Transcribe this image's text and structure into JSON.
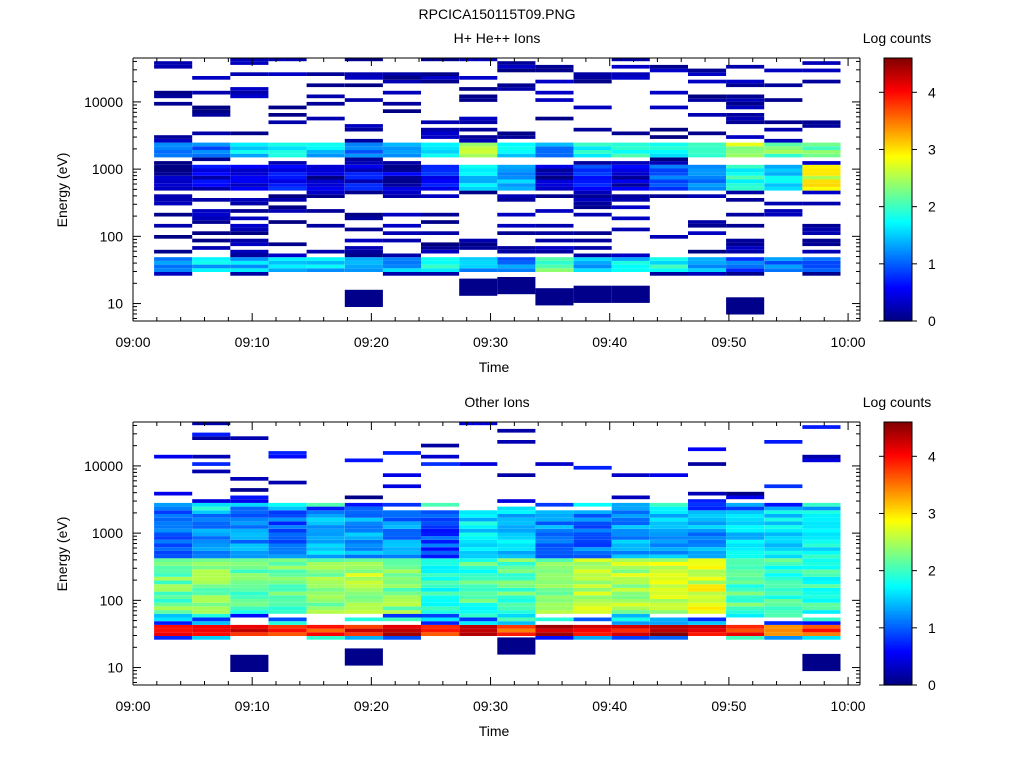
{
  "figure_title": "RPCICA150115T09.PNG",
  "chart_data": [
    {
      "type": "heatmap",
      "title": "H+ He++ Ions",
      "xlabel": "Time",
      "ylabel": "Energy (eV)",
      "x_ticks": [
        "09:00",
        "09:10",
        "09:20",
        "09:30",
        "09:40",
        "09:50",
        "10:00"
      ],
      "y_ticks": [
        "10",
        "100",
        "1000",
        "10000"
      ],
      "y_scale": "log",
      "colorbar": {
        "label": "Log counts",
        "ticks": [
          "0",
          "1",
          "2",
          "3",
          "4"
        ],
        "range": [
          0,
          4.6
        ]
      },
      "time_columns_min": [
        3.2,
        6.4,
        9.6,
        12.8,
        16.0,
        19.2,
        22.4,
        25.6,
        28.8,
        32.0,
        35.2,
        38.4,
        41.6,
        44.8,
        48.0,
        51.2,
        54.4,
        57.6
      ],
      "low_energy_band": {
        "energy_range_eV": [
          28,
          46
        ],
        "values": [
          1.2,
          1.5,
          1.4,
          1.6,
          1.5,
          1.3,
          1.4,
          1.8,
          1.3,
          1.1,
          2.2,
          1.4,
          1.6,
          1.8,
          1.3,
          1.0,
          1.2,
          1.0
        ]
      },
      "mid_energy_band": {
        "energy_range_eV": [
          1500,
          2600
        ],
        "values": [
          1.3,
          1.1,
          1.5,
          1.6,
          1.5,
          1.0,
          1.2,
          1.6,
          2.7,
          1.6,
          1.2,
          1.8,
          1.9,
          1.7,
          1.8,
          2.5,
          2.2,
          2.3
        ]
      },
      "broad_band": {
        "energy_range_eV": [
          500,
          1200
        ],
        "values": [
          0.2,
          0.4,
          0.6,
          0.6,
          0.3,
          0.5,
          0.3,
          0.6,
          1.5,
          1.3,
          0.3,
          0.7,
          0.4,
          1.0,
          1.3,
          1.8,
          1.6,
          2.8
        ]
      }
    },
    {
      "type": "heatmap",
      "title": "Other Ions",
      "xlabel": "Time",
      "ylabel": "Energy (eV)",
      "x_ticks": [
        "09:00",
        "09:10",
        "09:20",
        "09:30",
        "09:40",
        "09:50",
        "10:00"
      ],
      "y_ticks": [
        "10",
        "100",
        "1000",
        "10000"
      ],
      "y_scale": "log",
      "colorbar": {
        "label": "Log counts",
        "ticks": [
          "0",
          "1",
          "2",
          "3",
          "4"
        ],
        "range": [
          0,
          4.6
        ]
      },
      "time_columns_min": [
        3.2,
        6.4,
        9.6,
        12.8,
        16.0,
        19.2,
        22.4,
        25.6,
        28.8,
        32.0,
        35.2,
        38.4,
        41.6,
        44.8,
        48.0,
        51.2,
        54.4,
        57.6
      ],
      "peak_band": {
        "energy_range_eV": [
          30,
          45
        ],
        "values": [
          4.0,
          4.1,
          4.0,
          3.9,
          3.8,
          4.0,
          4.2,
          3.9,
          4.1,
          3.7,
          4.4,
          4.0,
          4.1,
          4.3,
          4.1,
          3.9,
          3.6,
          3.7
        ]
      },
      "plasma_band": {
        "energy_range_eV": [
          60,
          400
        ],
        "values": [
          2.2,
          2.3,
          2.1,
          2.2,
          2.4,
          2.5,
          2.3,
          1.8,
          2.0,
          2.1,
          2.3,
          2.6,
          2.5,
          2.6,
          2.7,
          2.1,
          2.0,
          1.9
        ]
      },
      "upper_band": {
        "energy_range_eV": [
          400,
          2200
        ],
        "values": [
          1.1,
          1.3,
          1.2,
          1.0,
          1.4,
          1.3,
          1.2,
          0.9,
          1.6,
          1.5,
          1.2,
          1.1,
          1.3,
          1.4,
          1.3,
          1.6,
          1.6,
          1.7
        ]
      }
    }
  ]
}
